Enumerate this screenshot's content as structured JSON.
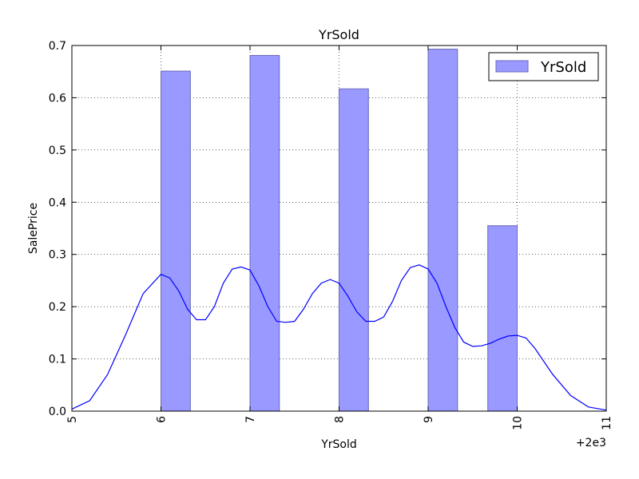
{
  "chart_data": {
    "type": "bar",
    "title": "YrSold",
    "xlabel": "YrSold",
    "ylabel": "SalePrice",
    "x_offset_label": "+2e3",
    "xlim": [
      5,
      11
    ],
    "ylim": [
      0,
      0.7
    ],
    "x_ticks": [
      5,
      6,
      7,
      8,
      9,
      10,
      11
    ],
    "x_tick_labels": [
      "5",
      "6",
      "7",
      "8",
      "9",
      "10",
      "11"
    ],
    "y_ticks": [
      0.0,
      0.1,
      0.2,
      0.3,
      0.4,
      0.5,
      0.6,
      0.7
    ],
    "y_tick_labels": [
      "0.0",
      "0.1",
      "0.2",
      "0.3",
      "0.4",
      "0.5",
      "0.6",
      "0.7"
    ],
    "grid": true,
    "legend_position": "top-right",
    "series": [
      {
        "name": "YrSold",
        "kind": "histogram",
        "color": "#9999ff",
        "edge_color": "#6a6ab8",
        "bars": [
          {
            "x0": 6.0,
            "x1": 6.33,
            "height": 0.651
          },
          {
            "x0": 7.0,
            "x1": 7.33,
            "height": 0.681
          },
          {
            "x0": 8.0,
            "x1": 8.33,
            "height": 0.617
          },
          {
            "x0": 9.0,
            "x1": 9.33,
            "height": 0.693
          },
          {
            "x0": 9.67,
            "x1": 10.0,
            "height": 0.355
          }
        ]
      },
      {
        "kind": "kde",
        "color": "#0000ff",
        "x": [
          5.0,
          5.2,
          5.4,
          5.6,
          5.8,
          6.0,
          6.1,
          6.2,
          6.3,
          6.4,
          6.5,
          6.6,
          6.7,
          6.8,
          6.9,
          7.0,
          7.1,
          7.2,
          7.3,
          7.4,
          7.5,
          7.6,
          7.7,
          7.8,
          7.9,
          8.0,
          8.1,
          8.2,
          8.3,
          8.4,
          8.5,
          8.6,
          8.7,
          8.8,
          8.9,
          9.0,
          9.1,
          9.2,
          9.3,
          9.4,
          9.5,
          9.6,
          9.7,
          9.8,
          9.9,
          10.0,
          10.1,
          10.2,
          10.4,
          10.6,
          10.8,
          11.0
        ],
        "y": [
          0.004,
          0.02,
          0.07,
          0.145,
          0.225,
          0.262,
          0.255,
          0.23,
          0.195,
          0.175,
          0.175,
          0.2,
          0.245,
          0.272,
          0.276,
          0.27,
          0.24,
          0.2,
          0.172,
          0.17,
          0.172,
          0.195,
          0.225,
          0.245,
          0.252,
          0.245,
          0.22,
          0.19,
          0.172,
          0.172,
          0.18,
          0.21,
          0.25,
          0.275,
          0.28,
          0.272,
          0.245,
          0.2,
          0.16,
          0.132,
          0.124,
          0.125,
          0.13,
          0.138,
          0.144,
          0.145,
          0.14,
          0.12,
          0.07,
          0.03,
          0.008,
          0.002
        ]
      }
    ]
  }
}
